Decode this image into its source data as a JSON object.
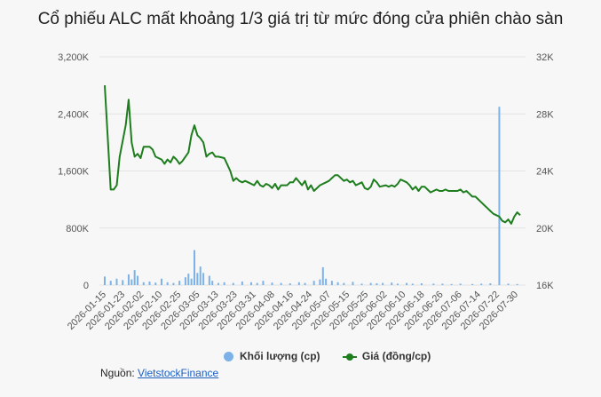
{
  "chart_data": {
    "type": "bar+line",
    "title": "Cổ phiếu ALC mất khoảng 1/3 giá trị từ mức đóng cửa phiên chào sàn",
    "left_axis": {
      "ticks": [
        "0",
        "800K",
        "1,600K",
        "2,400K",
        "3,200K"
      ],
      "range": [
        0,
        3200000
      ]
    },
    "right_axis": {
      "ticks": [
        "16K",
        "20K",
        "24K",
        "28K",
        "32K"
      ],
      "range": [
        16000,
        32000
      ]
    },
    "x_tick_labels": [
      "2026-01-15",
      "2026-01-23",
      "2026-02-02",
      "2026-02-10",
      "2026-02-25",
      "2026-03-05",
      "2026-03-13",
      "2026-03-23",
      "2026-03-31",
      "2026-04-08",
      "2026-04-16",
      "2026-04-24",
      "2026-05-07",
      "2026-05-15",
      "2026-05-25",
      "2026-06-02",
      "2026-06-10",
      "2026-06-18",
      "2026-06-26",
      "2026-07-06",
      "2026-07-14",
      "2026-07-22",
      "2026-07-30"
    ],
    "n_sessions": 140,
    "grid": "horizontal",
    "legend_position": "bottom",
    "colors": {
      "volume": "#7cb2e8",
      "price": "#1e7e1e",
      "grid": "#e3e3e3"
    },
    "series": [
      {
        "name": "Khối lượng (cp)",
        "axis": "left",
        "type": "bar",
        "points": [
          [
            0,
            120000
          ],
          [
            2,
            60000
          ],
          [
            4,
            90000
          ],
          [
            6,
            70000
          ],
          [
            8,
            150000
          ],
          [
            9,
            80000
          ],
          [
            10,
            210000
          ],
          [
            11,
            130000
          ],
          [
            13,
            40000
          ],
          [
            15,
            50000
          ],
          [
            17,
            35000
          ],
          [
            19,
            90000
          ],
          [
            21,
            40000
          ],
          [
            23,
            30000
          ],
          [
            25,
            60000
          ],
          [
            27,
            110000
          ],
          [
            28,
            160000
          ],
          [
            29,
            90000
          ],
          [
            30,
            490000
          ],
          [
            31,
            170000
          ],
          [
            32,
            260000
          ],
          [
            33,
            170000
          ],
          [
            35,
            130000
          ],
          [
            36,
            60000
          ],
          [
            38,
            30000
          ],
          [
            40,
            40000
          ],
          [
            43,
            30000
          ],
          [
            46,
            50000
          ],
          [
            49,
            40000
          ],
          [
            51,
            30000
          ],
          [
            53,
            60000
          ],
          [
            56,
            35000
          ],
          [
            59,
            30000
          ],
          [
            62,
            25000
          ],
          [
            65,
            40000
          ],
          [
            67,
            30000
          ],
          [
            70,
            60000
          ],
          [
            72,
            80000
          ],
          [
            73,
            250000
          ],
          [
            74,
            90000
          ],
          [
            76,
            60000
          ],
          [
            78,
            40000
          ],
          [
            80,
            30000
          ],
          [
            83,
            45000
          ],
          [
            86,
            20000
          ],
          [
            89,
            30000
          ],
          [
            91,
            25000
          ],
          [
            93,
            30000
          ],
          [
            96,
            35000
          ],
          [
            98,
            20000
          ],
          [
            101,
            30000
          ],
          [
            103,
            20000
          ],
          [
            106,
            25000
          ],
          [
            110,
            20000
          ],
          [
            113,
            20000
          ],
          [
            116,
            15000
          ],
          [
            119,
            20000
          ],
          [
            123,
            15000
          ],
          [
            126,
            20000
          ],
          [
            129,
            25000
          ],
          [
            132,
            2500000
          ],
          [
            135,
            20000
          ],
          [
            138,
            15000
          ]
        ]
      },
      {
        "name": "Giá (đồng/cp)",
        "axis": "right",
        "type": "line",
        "points": [
          [
            0,
            30000
          ],
          [
            2,
            22700
          ],
          [
            3,
            22700
          ],
          [
            4,
            23000
          ],
          [
            5,
            25000
          ],
          [
            7,
            27200
          ],
          [
            8,
            29000
          ],
          [
            9,
            26000
          ],
          [
            10,
            25000
          ],
          [
            11,
            25200
          ],
          [
            12,
            24900
          ],
          [
            13,
            25700
          ],
          [
            15,
            25700
          ],
          [
            16,
            25500
          ],
          [
            17,
            25000
          ],
          [
            19,
            24800
          ],
          [
            20,
            24500
          ],
          [
            21,
            24800
          ],
          [
            22,
            24600
          ],
          [
            23,
            25000
          ],
          [
            24,
            24800
          ],
          [
            25,
            24500
          ],
          [
            26,
            24700
          ],
          [
            27,
            25000
          ],
          [
            28,
            25300
          ],
          [
            29,
            26500
          ],
          [
            30,
            27200
          ],
          [
            31,
            26500
          ],
          [
            32,
            26300
          ],
          [
            33,
            26000
          ],
          [
            34,
            25000
          ],
          [
            35,
            25200
          ],
          [
            36,
            25300
          ],
          [
            37,
            25000
          ],
          [
            38,
            25000
          ],
          [
            40,
            24900
          ],
          [
            42,
            24000
          ],
          [
            43,
            23300
          ],
          [
            44,
            23500
          ],
          [
            45,
            23300
          ],
          [
            46,
            23200
          ],
          [
            47,
            23300
          ],
          [
            48,
            23200
          ],
          [
            49,
            23100
          ],
          [
            50,
            23000
          ],
          [
            51,
            23300
          ],
          [
            52,
            23000
          ],
          [
            53,
            22900
          ],
          [
            54,
            23100
          ],
          [
            55,
            23000
          ],
          [
            56,
            22800
          ],
          [
            57,
            23100
          ],
          [
            58,
            22700
          ],
          [
            59,
            23000
          ],
          [
            61,
            23000
          ],
          [
            62,
            23200
          ],
          [
            63,
            23200
          ],
          [
            64,
            23500
          ],
          [
            66,
            23000
          ],
          [
            67,
            23300
          ],
          [
            68,
            22700
          ],
          [
            69,
            23000
          ],
          [
            70,
            22600
          ],
          [
            72,
            23000
          ],
          [
            74,
            23200
          ],
          [
            75,
            23300
          ],
          [
            76,
            23500
          ],
          [
            77,
            23700
          ],
          [
            78,
            23700
          ],
          [
            79,
            23500
          ],
          [
            80,
            23300
          ],
          [
            81,
            23400
          ],
          [
            82,
            23200
          ],
          [
            83,
            23300
          ],
          [
            84,
            23000
          ],
          [
            86,
            23200
          ],
          [
            87,
            22800
          ],
          [
            88,
            22700
          ],
          [
            89,
            22900
          ],
          [
            90,
            23400
          ],
          [
            91,
            23200
          ],
          [
            92,
            22900
          ],
          [
            94,
            23000
          ],
          [
            95,
            22900
          ],
          [
            96,
            23000
          ],
          [
            97,
            22900
          ],
          [
            98,
            23100
          ],
          [
            99,
            23400
          ],
          [
            100,
            23300
          ],
          [
            101,
            23200
          ],
          [
            102,
            23000
          ],
          [
            103,
            22700
          ],
          [
            104,
            22900
          ],
          [
            105,
            22600
          ],
          [
            106,
            22900
          ],
          [
            107,
            22900
          ],
          [
            108,
            22700
          ],
          [
            109,
            22500
          ],
          [
            110,
            22600
          ],
          [
            111,
            22700
          ],
          [
            112,
            22600
          ],
          [
            113,
            22600
          ],
          [
            114,
            22700
          ],
          [
            115,
            22600
          ],
          [
            116,
            22600
          ],
          [
            117,
            22600
          ],
          [
            118,
            22600
          ],
          [
            119,
            22700
          ],
          [
            120,
            22500
          ],
          [
            121,
            22600
          ],
          [
            122,
            22400
          ],
          [
            123,
            22200
          ],
          [
            124,
            22200
          ],
          [
            125,
            22000
          ],
          [
            126,
            21800
          ],
          [
            127,
            21600
          ],
          [
            128,
            21400
          ],
          [
            129,
            21200
          ],
          [
            130,
            21000
          ],
          [
            131,
            20900
          ],
          [
            132,
            20800
          ],
          [
            133,
            20500
          ],
          [
            134,
            20400
          ],
          [
            135,
            20600
          ],
          [
            136,
            20300
          ],
          [
            137,
            20800
          ],
          [
            138,
            21100
          ],
          [
            139,
            20900
          ]
        ]
      }
    ]
  },
  "legend": [
    {
      "label": "Khối lượng (cp)",
      "color": "#7cb2e8"
    },
    {
      "label": "Giá (đồng/cp)",
      "color": "#1e7e1e"
    }
  ],
  "source": {
    "label": "Nguồn:",
    "link_text": "VietstockFinance"
  }
}
